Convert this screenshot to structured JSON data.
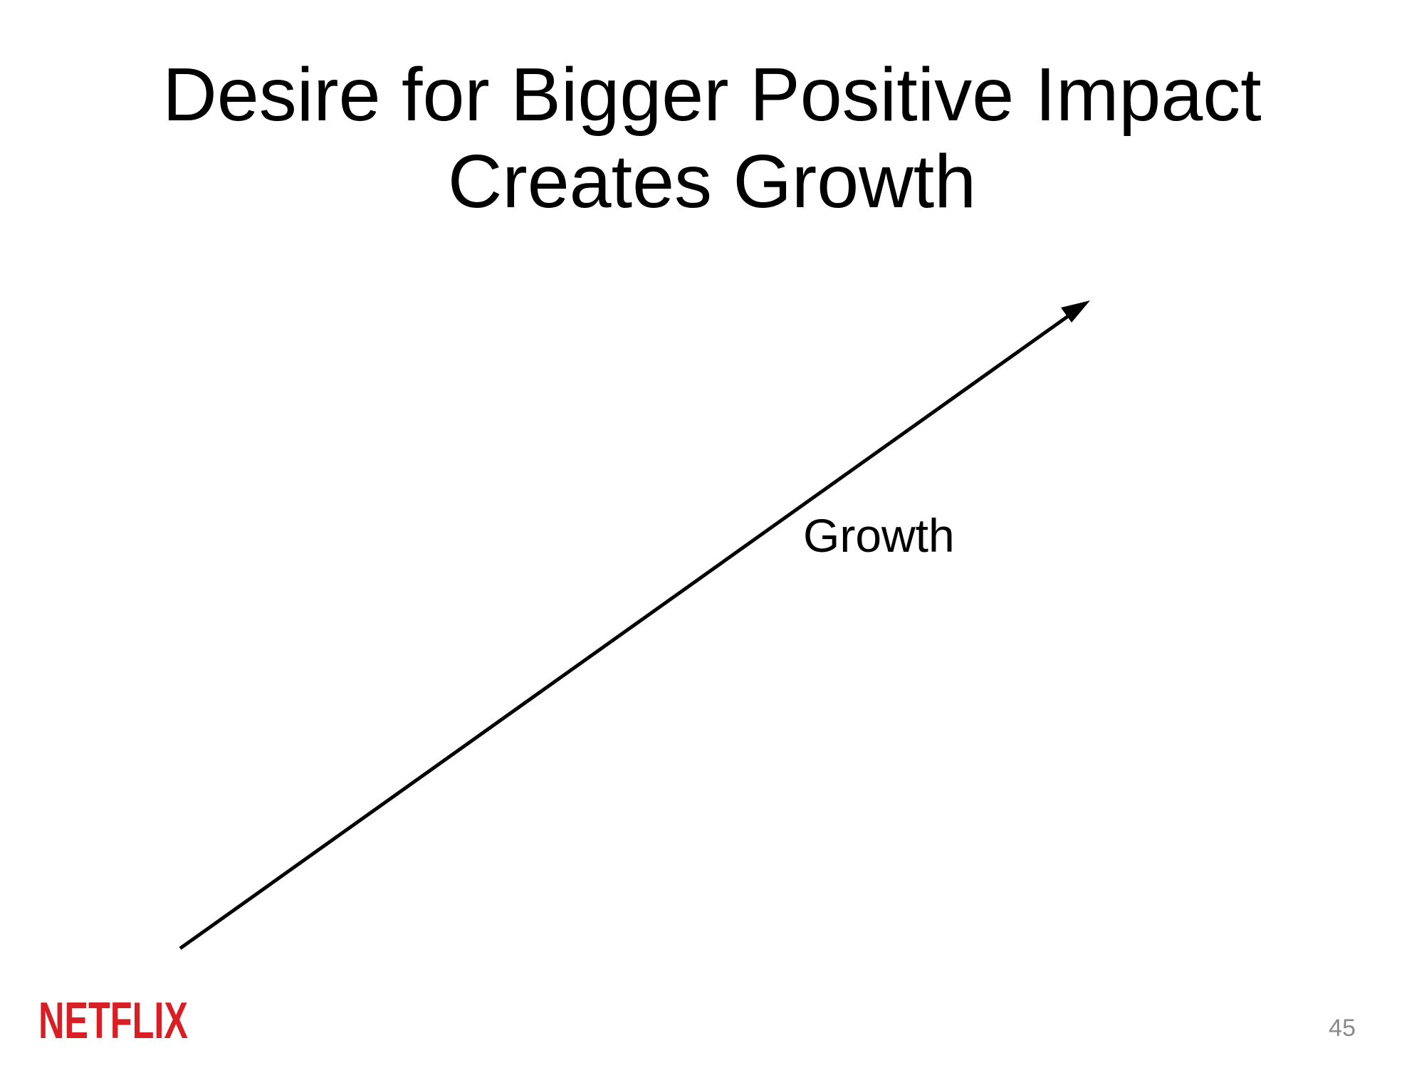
{
  "slide": {
    "title_line1": "Desire for Bigger Positive Impact",
    "title_line2": "Creates Growth",
    "arrow_label": "Growth",
    "page_number": "45",
    "logo_text": "NETFLIX"
  },
  "colors": {
    "text": "#000000",
    "arrow": "#000000",
    "brand": "#d81f26",
    "page_number": "#8a8a8a",
    "background": "#ffffff"
  },
  "icons": {
    "arrow": "arrow-up-right-icon",
    "logo": "netflix-logo"
  }
}
